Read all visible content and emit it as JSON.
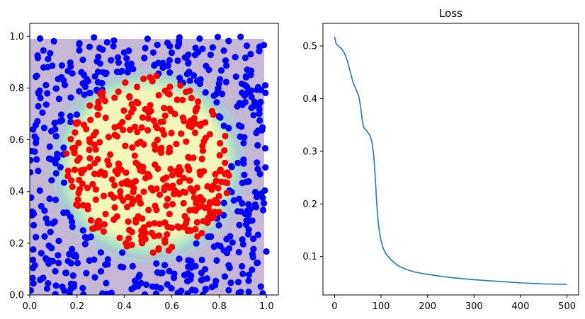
{
  "chart_data": [
    {
      "type": "scatter",
      "title": "",
      "xlabel": "",
      "ylabel": "",
      "xlim": [
        0,
        1.05
      ],
      "ylim": [
        0,
        1.05
      ],
      "xticks": [
        "0.0",
        "0.2",
        "0.4",
        "0.6",
        "0.8",
        "1.0"
      ],
      "yticks": [
        "0.0",
        "0.2",
        "0.4",
        "0.6",
        "0.8",
        "1.0"
      ],
      "decision_boundary": {
        "type": "circle",
        "center": [
          0.5,
          0.5
        ],
        "radius": 0.35,
        "domain": [
          0,
          0.99
        ],
        "inside_color": "#f2f6b8",
        "outside_color": "#c6b7d4",
        "contour_color": "#7fd0c8"
      },
      "series": [
        {
          "color": "#0000ff",
          "count_approx": 470,
          "region": "outside circle r=0.35 centered (0.5,0.5)"
        },
        {
          "color": "#ff0000",
          "count_approx": 380,
          "region": "inside circle r=0.35 centered (0.5,0.5)"
        }
      ],
      "grid": false
    },
    {
      "type": "line",
      "title": "Loss",
      "xlabel": "",
      "ylabel": "",
      "xlim": [
        -25,
        525
      ],
      "ylim": [
        0.027,
        0.543
      ],
      "xticks": [
        "0",
        "100",
        "200",
        "300",
        "400",
        "500"
      ],
      "yticks": [
        "0.1",
        "0.2",
        "0.3",
        "0.4",
        "0.5"
      ],
      "series": [
        {
          "color": "#1f77b4",
          "x": [
            0,
            3,
            8,
            15,
            22,
            28,
            34,
            40,
            46,
            52,
            56,
            60,
            64,
            68,
            72,
            76,
            80,
            84,
            86,
            88,
            90,
            92,
            94,
            96,
            98,
            100,
            105,
            110,
            120,
            130,
            140,
            150,
            170,
            200,
            250,
            300,
            350,
            400,
            450,
            500
          ],
          "y": [
            0.518,
            0.505,
            0.5,
            0.495,
            0.485,
            0.47,
            0.45,
            0.43,
            0.418,
            0.405,
            0.385,
            0.355,
            0.343,
            0.34,
            0.335,
            0.33,
            0.318,
            0.295,
            0.27,
            0.245,
            0.21,
            0.185,
            0.165,
            0.15,
            0.14,
            0.13,
            0.115,
            0.106,
            0.095,
            0.087,
            0.081,
            0.077,
            0.071,
            0.066,
            0.06,
            0.056,
            0.053,
            0.05,
            0.048,
            0.047
          ]
        }
      ],
      "grid": false
    }
  ]
}
